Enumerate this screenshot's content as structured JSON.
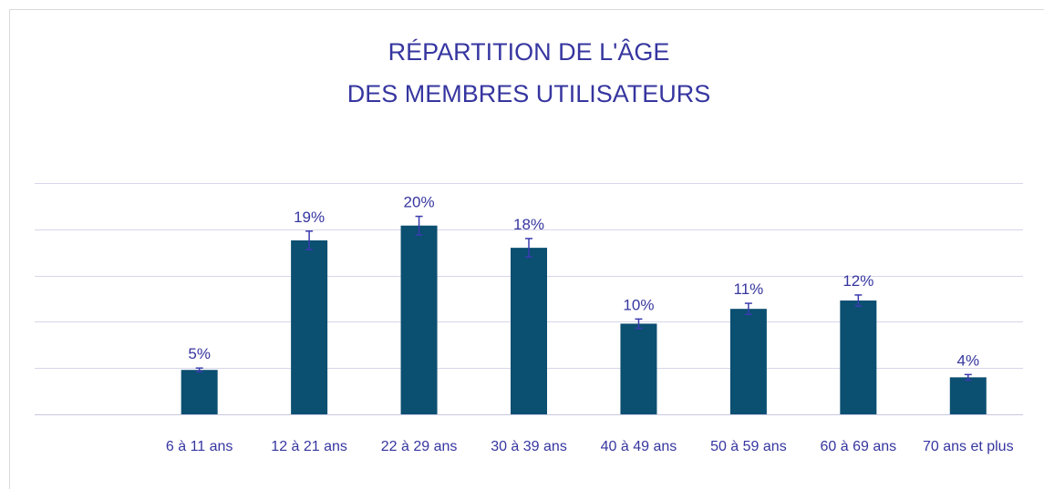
{
  "chart_data": {
    "type": "bar",
    "title": [
      "RÉPARTITION DE L'ÂGE",
      "DES MEMBRES UTILISATEURS"
    ],
    "categories": [
      null,
      "6 à 11 ans",
      "12 à 21 ans",
      "22 à 29 ans",
      "30 à 39 ans",
      "40 à 49 ans",
      "50 à 59 ans",
      "60 à 69 ans",
      "70 ans et plus"
    ],
    "values": [
      null,
      4.8,
      18.8,
      20.4,
      18,
      9.8,
      11.4,
      12.3,
      4
    ],
    "value_labels": [
      null,
      "5%",
      "19%",
      "20%",
      "18%",
      "10%",
      "11%",
      "12%",
      "4%"
    ],
    "errors": [
      null,
      0.2,
      1,
      1,
      1,
      0.5,
      0.6,
      0.6,
      0.3
    ],
    "color": "#0b4f71",
    "error_color": "#3b3bb0",
    "ylim": [
      0,
      25
    ],
    "yticks": [
      0,
      5,
      10,
      15,
      20,
      25
    ],
    "grid": true
  }
}
